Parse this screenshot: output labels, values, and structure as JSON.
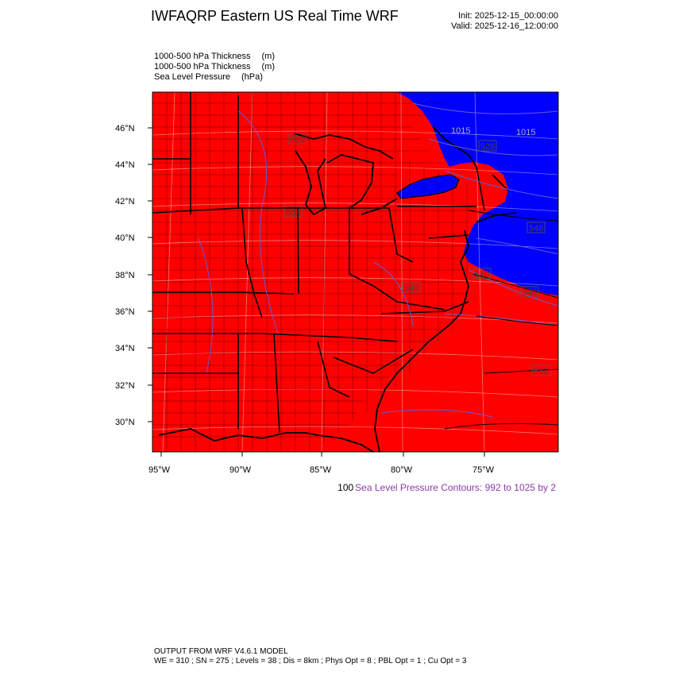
{
  "header": {
    "title": "IWFAQRP Eastern US Real Time WRF",
    "init": "Init: 2025-12-15_00:00:00",
    "valid": "Valid: 2025-12-16_12:00:00"
  },
  "fields": [
    {
      "name": "1000-500 hPa Thickness",
      "unit": "(m)"
    },
    {
      "name": "1000-500 hPa Thickness",
      "unit": "(m)"
    },
    {
      "name": "Sea Level Pressure",
      "unit": "(hPa)"
    }
  ],
  "axes": {
    "lat_labels": [
      "46°N",
      "44°N",
      "42°N",
      "40°N",
      "38°N",
      "36°N",
      "34°N",
      "32°N",
      "30°N"
    ],
    "lon_labels": [
      "95°W",
      "90°W",
      "85°W",
      "80°W",
      "75°W"
    ]
  },
  "map": {
    "fill_warm": "#ff0000",
    "fill_cold": "#0000ff",
    "boundary_color": "#000000",
    "pressure_contour_color": "#6a5acd",
    "contour_labels": [
      "522",
      "534",
      "540",
      "546",
      "552",
      "1015",
      "1015",
      "528",
      "546",
      "540"
    ]
  },
  "legend": {
    "number": "100",
    "text": "Sea Level Pressure Contours: 992 to 1025 by 2"
  },
  "footer": {
    "line1": "OUTPUT FROM WRF V4.6.1 MODEL",
    "line2": "WE = 310 ; SN = 275 ; Levels = 38 ; Dis = 8km ; Phys Opt = 8 ; PBL Opt = 1 ; Cu Opt = 3"
  }
}
